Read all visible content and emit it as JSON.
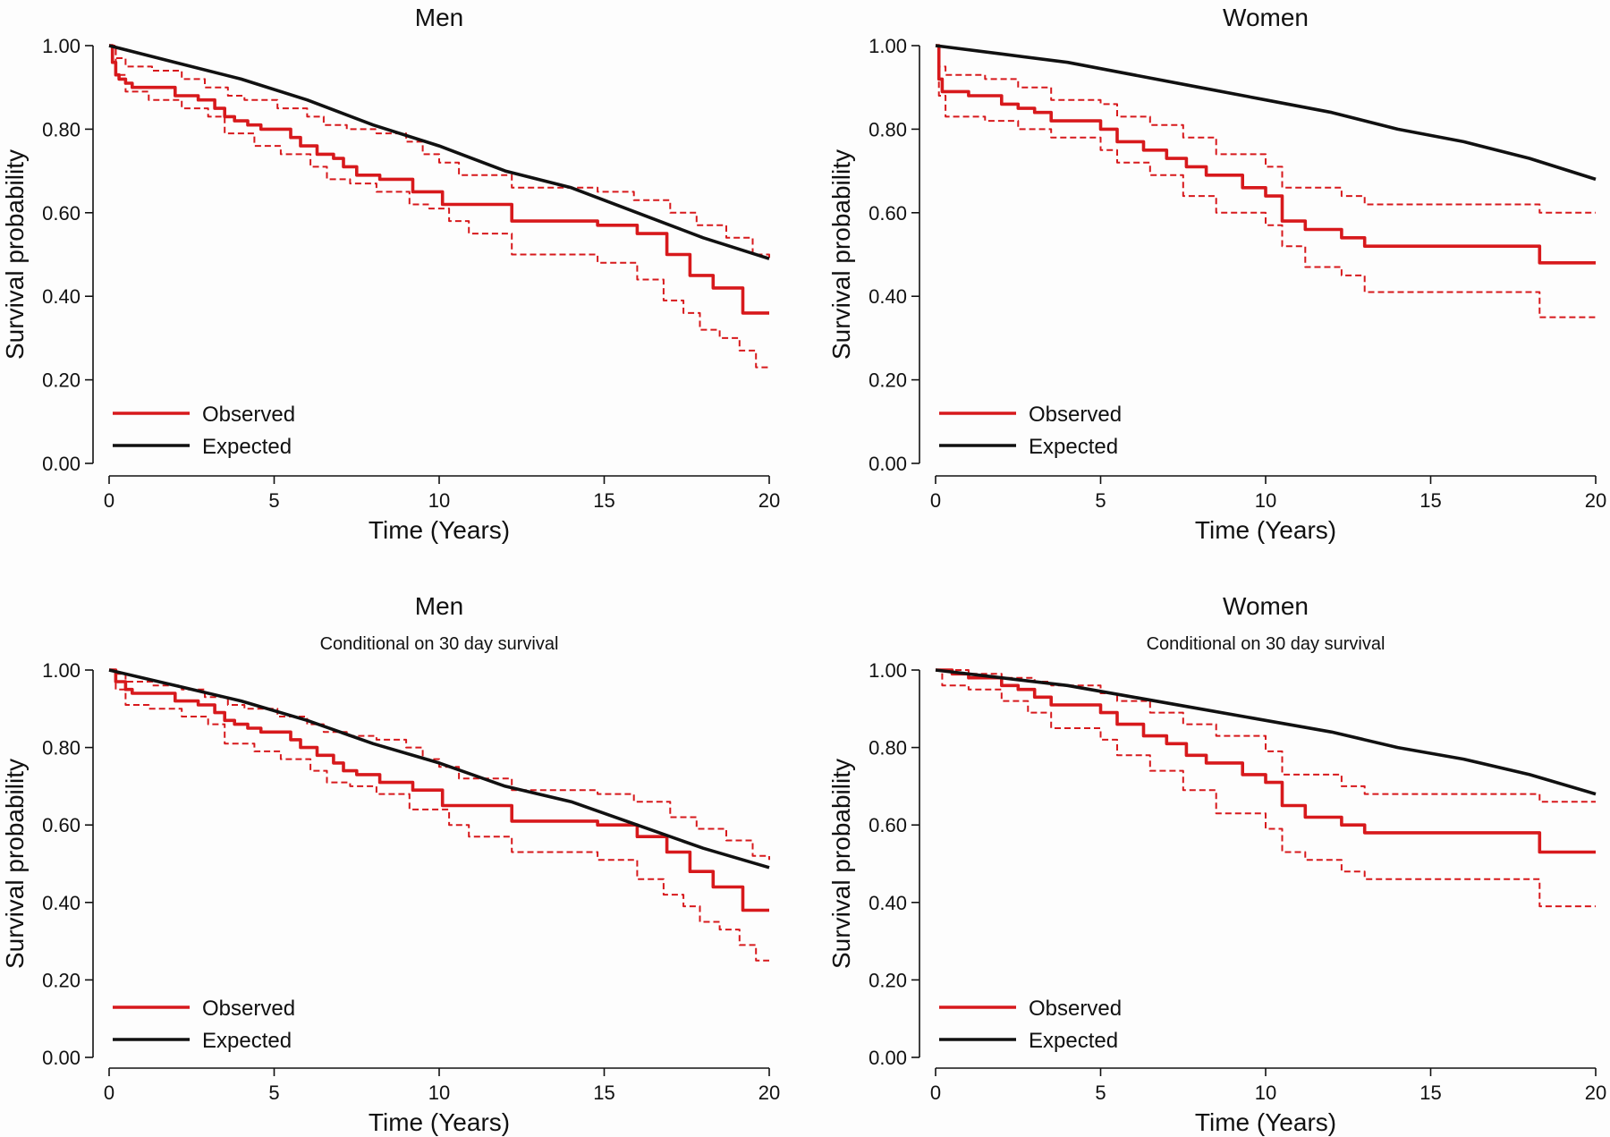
{
  "colors": {
    "observed": "#d7191c",
    "expected": "#111111",
    "axis": "#111111"
  },
  "legend": {
    "observed": "Observed",
    "expected": "Expected"
  },
  "chart_data": [
    {
      "type": "line",
      "title": "Men",
      "subtitle": "",
      "xlabel": "Time (Years)",
      "ylabel": "Survival probability",
      "xlim": [
        0,
        20
      ],
      "ylim": [
        0,
        1
      ],
      "xticks": [
        0,
        5,
        10,
        15,
        20
      ],
      "yticks": [
        0,
        0.2,
        0.4,
        0.6,
        0.8,
        1.0
      ],
      "ytick_labels": [
        "0.00",
        "0.20",
        "0.40",
        "0.60",
        "0.80",
        "1.00"
      ],
      "grid": false,
      "legend_position": "bottom-left",
      "series": [
        {
          "name": "Observed",
          "style": "step",
          "dash": "solid",
          "x": [
            0,
            0.1,
            0.2,
            0.3,
            0.5,
            0.7,
            2.0,
            2.7,
            3.2,
            3.5,
            3.8,
            4.2,
            4.6,
            5.5,
            5.8,
            6.3,
            6.8,
            7.1,
            7.5,
            8.2,
            9.2,
            10.1,
            10.6,
            12.2,
            14.8,
            16.0,
            16.9,
            17.6,
            18.3,
            19.2,
            20.0
          ],
          "y": [
            1.0,
            0.96,
            0.93,
            0.92,
            0.91,
            0.9,
            0.88,
            0.87,
            0.85,
            0.83,
            0.82,
            0.81,
            0.8,
            0.78,
            0.76,
            0.74,
            0.73,
            0.71,
            0.69,
            0.68,
            0.65,
            0.62,
            0.62,
            0.58,
            0.57,
            0.55,
            0.5,
            0.45,
            0.42,
            0.36,
            0.36
          ]
        },
        {
          "name": "Observed upper CI",
          "style": "step",
          "dash": "dashed",
          "x": [
            0,
            0.2,
            0.5,
            1.3,
            2.2,
            2.9,
            3.6,
            4.1,
            5.1,
            6.0,
            6.5,
            7.2,
            8.1,
            9.0,
            9.5,
            10.0,
            10.6,
            12.2,
            14.8,
            15.9,
            17.0,
            17.8,
            18.7,
            19.5,
            20.0
          ],
          "y": [
            1.0,
            0.97,
            0.95,
            0.94,
            0.92,
            0.9,
            0.88,
            0.87,
            0.85,
            0.83,
            0.81,
            0.8,
            0.79,
            0.77,
            0.74,
            0.72,
            0.69,
            0.66,
            0.65,
            0.63,
            0.6,
            0.57,
            0.54,
            0.5,
            0.49
          ]
        },
        {
          "name": "Observed lower CI",
          "style": "step",
          "dash": "dashed",
          "x": [
            0,
            0.2,
            0.5,
            1.2,
            2.2,
            3.0,
            3.5,
            4.4,
            5.2,
            6.1,
            6.6,
            7.3,
            8.1,
            9.1,
            9.7,
            10.3,
            10.9,
            12.2,
            14.8,
            16.0,
            16.8,
            17.4,
            17.9,
            18.5,
            19.1,
            19.6,
            20.0
          ],
          "y": [
            1.0,
            0.93,
            0.89,
            0.87,
            0.85,
            0.83,
            0.79,
            0.76,
            0.74,
            0.71,
            0.68,
            0.67,
            0.65,
            0.62,
            0.61,
            0.58,
            0.55,
            0.5,
            0.48,
            0.44,
            0.39,
            0.36,
            0.32,
            0.3,
            0.27,
            0.23,
            0.23
          ]
        },
        {
          "name": "Expected",
          "style": "smooth",
          "dash": "solid",
          "x": [
            0,
            2,
            4,
            6,
            8,
            10,
            12,
            14,
            16,
            18,
            20
          ],
          "y": [
            1.0,
            0.96,
            0.92,
            0.87,
            0.81,
            0.76,
            0.7,
            0.66,
            0.6,
            0.54,
            0.49
          ]
        }
      ]
    },
    {
      "type": "line",
      "title": "Women",
      "subtitle": "",
      "xlabel": "Time (Years)",
      "ylabel": "Survival probability",
      "xlim": [
        0,
        20
      ],
      "ylim": [
        0,
        1
      ],
      "xticks": [
        0,
        5,
        10,
        15,
        20
      ],
      "yticks": [
        0,
        0.2,
        0.4,
        0.6,
        0.8,
        1.0
      ],
      "ytick_labels": [
        "0.00",
        "0.20",
        "0.40",
        "0.60",
        "0.80",
        "1.00"
      ],
      "grid": false,
      "legend_position": "bottom-left",
      "series": [
        {
          "name": "Observed",
          "style": "step",
          "dash": "solid",
          "x": [
            0,
            0.1,
            0.2,
            1.0,
            2.0,
            2.5,
            3.0,
            3.5,
            5.0,
            5.5,
            6.3,
            7.0,
            7.6,
            8.2,
            9.3,
            10.0,
            10.5,
            11.2,
            12.3,
            13.0,
            18.3,
            20.0
          ],
          "y": [
            1.0,
            0.92,
            0.89,
            0.88,
            0.86,
            0.85,
            0.84,
            0.82,
            0.8,
            0.77,
            0.75,
            0.73,
            0.71,
            0.69,
            0.66,
            0.64,
            0.58,
            0.56,
            0.54,
            0.52,
            0.48,
            0.48
          ]
        },
        {
          "name": "Observed upper CI",
          "style": "step",
          "dash": "dashed",
          "x": [
            0,
            0.1,
            0.3,
            1.5,
            2.5,
            3.5,
            5.0,
            5.5,
            6.5,
            7.5,
            8.5,
            10.0,
            10.5,
            12.3,
            13.0,
            18.3,
            20.0
          ],
          "y": [
            1.0,
            0.95,
            0.93,
            0.92,
            0.9,
            0.87,
            0.86,
            0.83,
            0.81,
            0.78,
            0.74,
            0.71,
            0.66,
            0.64,
            0.62,
            0.6,
            0.6
          ]
        },
        {
          "name": "Observed lower CI",
          "style": "step",
          "dash": "dashed",
          "x": [
            0,
            0.1,
            0.3,
            1.5,
            2.5,
            3.5,
            5.0,
            5.5,
            6.5,
            7.5,
            8.5,
            10.0,
            10.5,
            11.2,
            12.3,
            13.0,
            18.3,
            20.0
          ],
          "y": [
            1.0,
            0.88,
            0.83,
            0.82,
            0.8,
            0.78,
            0.75,
            0.72,
            0.69,
            0.64,
            0.6,
            0.57,
            0.52,
            0.47,
            0.45,
            0.41,
            0.35,
            0.35
          ]
        },
        {
          "name": "Expected",
          "style": "smooth",
          "dash": "solid",
          "x": [
            0,
            2,
            4,
            6,
            8,
            10,
            12,
            14,
            16,
            18,
            20
          ],
          "y": [
            1.0,
            0.98,
            0.96,
            0.93,
            0.9,
            0.87,
            0.84,
            0.8,
            0.77,
            0.73,
            0.68
          ]
        }
      ]
    },
    {
      "type": "line",
      "title": "Men",
      "subtitle": "Conditional on 30 day survival",
      "xlabel": "Time (Years)",
      "ylabel": "Survival probability",
      "xlim": [
        0,
        20
      ],
      "ylim": [
        0,
        1
      ],
      "xticks": [
        0,
        5,
        10,
        15,
        20
      ],
      "yticks": [
        0,
        0.2,
        0.4,
        0.6,
        0.8,
        1.0
      ],
      "ytick_labels": [
        "0.00",
        "0.20",
        "0.40",
        "0.60",
        "0.80",
        "1.00"
      ],
      "grid": false,
      "legend_position": "bottom-left",
      "series": [
        {
          "name": "Observed",
          "style": "step",
          "dash": "solid",
          "x": [
            0,
            0.2,
            0.5,
            0.7,
            2.0,
            2.7,
            3.2,
            3.5,
            3.8,
            4.2,
            4.6,
            5.5,
            5.8,
            6.3,
            6.8,
            7.1,
            7.5,
            8.2,
            9.2,
            10.1,
            10.6,
            12.2,
            14.8,
            16.0,
            16.9,
            17.6,
            18.3,
            19.2,
            20.0
          ],
          "y": [
            1.0,
            0.97,
            0.95,
            0.94,
            0.92,
            0.91,
            0.89,
            0.87,
            0.86,
            0.85,
            0.84,
            0.82,
            0.8,
            0.78,
            0.76,
            0.74,
            0.73,
            0.71,
            0.69,
            0.65,
            0.65,
            0.61,
            0.6,
            0.57,
            0.53,
            0.48,
            0.44,
            0.38,
            0.38
          ]
        },
        {
          "name": "Observed upper CI",
          "style": "step",
          "dash": "dashed",
          "x": [
            0,
            0.2,
            0.5,
            1.3,
            2.2,
            2.9,
            3.6,
            4.1,
            5.1,
            6.0,
            6.5,
            7.2,
            8.1,
            9.0,
            9.5,
            10.0,
            10.6,
            12.2,
            14.8,
            15.9,
            17.0,
            17.8,
            18.7,
            19.5,
            20.0
          ],
          "y": [
            1.0,
            0.99,
            0.97,
            0.96,
            0.95,
            0.93,
            0.91,
            0.9,
            0.88,
            0.86,
            0.84,
            0.83,
            0.82,
            0.8,
            0.77,
            0.75,
            0.72,
            0.69,
            0.68,
            0.66,
            0.62,
            0.59,
            0.56,
            0.52,
            0.51
          ]
        },
        {
          "name": "Observed lower CI",
          "style": "step",
          "dash": "dashed",
          "x": [
            0,
            0.2,
            0.5,
            1.2,
            2.2,
            3.0,
            3.5,
            4.4,
            5.2,
            6.1,
            6.6,
            7.3,
            8.1,
            9.1,
            9.7,
            10.3,
            10.9,
            12.2,
            14.8,
            16.0,
            16.8,
            17.4,
            17.9,
            18.5,
            19.1,
            19.6,
            20.0
          ],
          "y": [
            1.0,
            0.95,
            0.91,
            0.9,
            0.88,
            0.86,
            0.81,
            0.79,
            0.77,
            0.74,
            0.71,
            0.7,
            0.68,
            0.64,
            0.64,
            0.6,
            0.57,
            0.53,
            0.51,
            0.46,
            0.42,
            0.39,
            0.35,
            0.33,
            0.29,
            0.25,
            0.25
          ]
        },
        {
          "name": "Expected",
          "style": "smooth",
          "dash": "solid",
          "x": [
            0,
            2,
            4,
            6,
            8,
            10,
            12,
            14,
            16,
            18,
            20
          ],
          "y": [
            1.0,
            0.96,
            0.92,
            0.87,
            0.81,
            0.76,
            0.7,
            0.66,
            0.6,
            0.54,
            0.49
          ]
        }
      ]
    },
    {
      "type": "line",
      "title": "Women",
      "subtitle": "Conditional on 30 day survival",
      "xlabel": "Time (Years)",
      "ylabel": "Survival probability",
      "xlim": [
        0,
        20
      ],
      "ylim": [
        0,
        1
      ],
      "xticks": [
        0,
        5,
        10,
        15,
        20
      ],
      "yticks": [
        0,
        0.2,
        0.4,
        0.6,
        0.8,
        1.0
      ],
      "ytick_labels": [
        "0.00",
        "0.20",
        "0.40",
        "0.60",
        "0.80",
        "1.00"
      ],
      "grid": false,
      "legend_position": "bottom-left",
      "series": [
        {
          "name": "Observed",
          "style": "step",
          "dash": "solid",
          "x": [
            0,
            0.5,
            1.0,
            2.0,
            2.5,
            3.0,
            3.5,
            5.0,
            5.5,
            6.3,
            7.0,
            7.6,
            8.2,
            9.3,
            10.0,
            10.5,
            11.2,
            12.3,
            13.0,
            18.3,
            20.0
          ],
          "y": [
            1.0,
            0.99,
            0.98,
            0.96,
            0.95,
            0.93,
            0.91,
            0.89,
            0.86,
            0.83,
            0.81,
            0.78,
            0.76,
            0.73,
            0.71,
            0.65,
            0.62,
            0.6,
            0.58,
            0.53,
            0.53
          ]
        },
        {
          "name": "Observed upper CI",
          "style": "step",
          "dash": "dashed",
          "x": [
            0,
            1.0,
            2.0,
            3.0,
            3.5,
            5.0,
            5.5,
            6.5,
            7.5,
            8.5,
            10.0,
            10.5,
            12.3,
            13.0,
            18.3,
            20.0
          ],
          "y": [
            1.0,
            0.99,
            0.98,
            0.97,
            0.96,
            0.94,
            0.92,
            0.89,
            0.86,
            0.83,
            0.79,
            0.73,
            0.7,
            0.68,
            0.66,
            0.66
          ]
        },
        {
          "name": "Observed lower CI",
          "style": "step",
          "dash": "dashed",
          "x": [
            0,
            0.2,
            1.0,
            2.0,
            2.8,
            3.5,
            5.0,
            5.5,
            6.5,
            7.5,
            8.5,
            10.0,
            10.5,
            11.2,
            12.3,
            13.0,
            18.3,
            20.0
          ],
          "y": [
            1.0,
            0.96,
            0.95,
            0.92,
            0.89,
            0.85,
            0.82,
            0.78,
            0.74,
            0.69,
            0.63,
            0.59,
            0.53,
            0.51,
            0.48,
            0.46,
            0.39,
            0.39
          ]
        },
        {
          "name": "Expected",
          "style": "smooth",
          "dash": "solid",
          "x": [
            0,
            2,
            4,
            6,
            8,
            10,
            12,
            14,
            16,
            18,
            20
          ],
          "y": [
            1.0,
            0.98,
            0.96,
            0.93,
            0.9,
            0.87,
            0.84,
            0.8,
            0.77,
            0.73,
            0.68
          ]
        }
      ]
    }
  ]
}
